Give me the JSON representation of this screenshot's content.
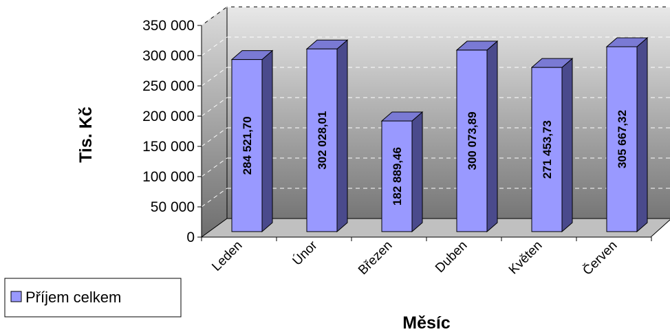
{
  "chart_data": {
    "type": "bar",
    "categories": [
      "Leden",
      "Únor",
      "Březen",
      "Duben",
      "Květen",
      "Červen"
    ],
    "series": [
      {
        "name": "Příjem celkem",
        "values": [
          284521.7,
          302028.01,
          182889.46,
          300073.89,
          271453.73,
          305667.32
        ],
        "labels": [
          "284 521,70",
          "302 028,01",
          "182 889,46",
          "300 073,89",
          "271 453,73",
          "305 667,32"
        ]
      }
    ],
    "ylim": [
      0,
      350000
    ],
    "yticks": [
      0,
      50000,
      100000,
      150000,
      200000,
      250000,
      300000,
      350000
    ],
    "ytick_labels": [
      "0",
      "50 000",
      "100 000",
      "150 000",
      "200 000",
      "250 000",
      "300 000",
      "350 000"
    ],
    "xlabel": "Měsíc",
    "ylabel": "Tis. Kč",
    "legend_position": "bottom-left",
    "grid": true,
    "style": "3d-column",
    "colors": {
      "bar_front": "#9999ff",
      "bar_side": "#4a4a8c",
      "bar_top": "#7a7ad4",
      "wall_top": "#e6e6e6",
      "wall_bottom": "#7a7a7a",
      "floor": "#c0c0c0"
    }
  }
}
